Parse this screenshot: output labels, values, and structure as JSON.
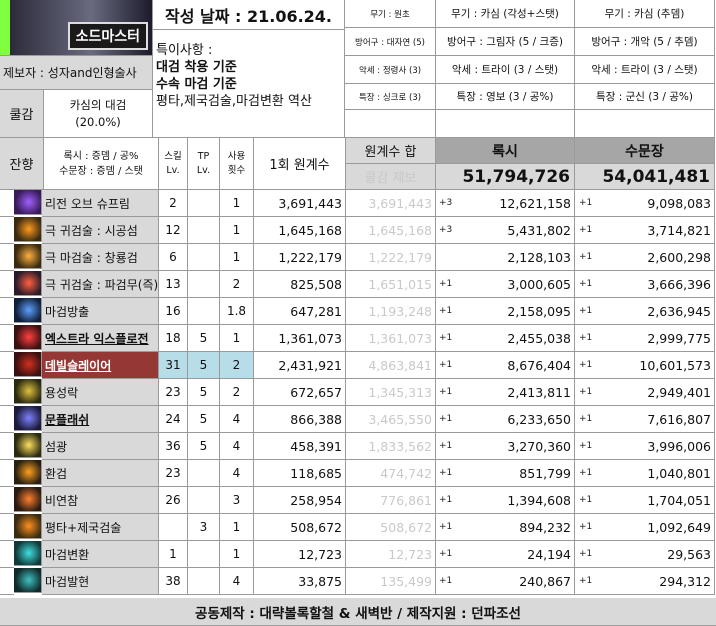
{
  "header": {
    "logo_text": "소드마스터",
    "date_label": "작성 날짜 : 21.06.24.",
    "producer": "제보자 : 성자and인형술사",
    "notes_title": "특이사항 :",
    "notes": [
      "대검 착용 기준",
      "수속 마검 기준",
      "평타,제국검술,마검변환 역산"
    ],
    "cooldown_label": "쿨감",
    "cooldown_value": "카심의 대검\n(20.0%)",
    "remain_label": "잔향",
    "remain_value": "록시 : 증뎀 / 공%\n수문장 : 증뎀 / 스탯"
  },
  "equip": {
    "col1": [
      "무기 : 원초",
      "방어구 : 대자연 (5)",
      "악세 : 정령사 (3)",
      "특장 : 싱크로 (3)"
    ],
    "col2": [
      "무기 : 카심 (각성+스탯)",
      "방어구 : 그림자 (5 / 크증)",
      "악세 : 트라이 (3 / 스탯)",
      "특장 : 영보 (3 / 공%)"
    ],
    "col3": [
      "무기 : 카심 (추뎀)",
      "방어구 : 개악 (5 / 추뎀)",
      "악세 : 트라이 (3 / 스탯)",
      "특장 : 군신 (3 / 공%)"
    ]
  },
  "columns": {
    "skill_lv": "스킬\nLv.",
    "tp_lv": "TP\nLv.",
    "uses": "사용\n횟수",
    "base": "1회 원계수",
    "sum": "원계수 합",
    "sum_sub": "쿨감 제보",
    "roxy": "록시",
    "roxy_total": "51,794,726",
    "gate": "수문장",
    "gate_total": "54,041,481"
  },
  "rows": [
    {
      "name": "리전 오브 슈프림",
      "lv": "2",
      "tp": "",
      "uses": "1",
      "base": "3,691,443",
      "sum": "3,691,443",
      "rplus": "+3",
      "roxy": "12,621,158",
      "gplus": "+1",
      "gate": "9,098,083",
      "icon": "legion-supreme-icon",
      "hl": false,
      "ul": false
    },
    {
      "name": "극 귀검술 : 시공섬",
      "lv": "12",
      "tp": "",
      "uses": "1",
      "base": "1,645,168",
      "sum": "1,645,168",
      "rplus": "+3",
      "roxy": "5,431,802",
      "gplus": "+1",
      "gate": "3,714,821",
      "icon": "spacetime-slash-icon",
      "hl": false,
      "ul": false
    },
    {
      "name": "극 마검술 : 창룡검",
      "lv": "6",
      "tp": "",
      "uses": "1",
      "base": "1,222,179",
      "sum": "1,222,179",
      "rplus": "",
      "roxy": "2,128,103",
      "gplus": "+1",
      "gate": "2,600,298",
      "icon": "dragon-sword-icon",
      "hl": false,
      "ul": false
    },
    {
      "name": "극 귀검술 : 파검무(즉)",
      "lv": "13",
      "tp": "",
      "uses": "2",
      "base": "825,508",
      "sum": "1,651,015",
      "rplus": "+1",
      "roxy": "3,000,605",
      "gplus": "+1",
      "gate": "3,666,396",
      "icon": "sword-dance-icon",
      "hl": false,
      "ul": false
    },
    {
      "name": "마검방출",
      "lv": "16",
      "tp": "",
      "uses": "1.8",
      "base": "647,281",
      "sum": "1,193,248",
      "rplus": "+1",
      "roxy": "2,158,095",
      "gplus": "+1",
      "gate": "2,636,945",
      "icon": "sword-release-icon",
      "hl": false,
      "ul": false
    },
    {
      "name": "엑스트라 익스플로전",
      "lv": "18",
      "tp": "5",
      "uses": "1",
      "base": "1,361,073",
      "sum": "1,361,073",
      "rplus": "+1",
      "roxy": "2,455,038",
      "gplus": "+1",
      "gate": "2,999,775",
      "icon": "extra-explosion-icon",
      "hl": false,
      "ul": true
    },
    {
      "name": "데빌슬레이어",
      "lv": "31",
      "tp": "5",
      "uses": "2",
      "base": "2,431,921",
      "sum": "4,863,841",
      "rplus": "+1",
      "roxy": "8,676,404",
      "gplus": "+1",
      "gate": "10,601,573",
      "icon": "devil-slayer-icon",
      "hl": true,
      "ul": true
    },
    {
      "name": "용성락",
      "lv": "23",
      "tp": "5",
      "uses": "2",
      "base": "672,657",
      "sum": "1,345,313",
      "rplus": "+1",
      "roxy": "2,413,811",
      "gplus": "+1",
      "gate": "2,949,401",
      "icon": "dragon-fall-icon",
      "hl": false,
      "ul": false
    },
    {
      "name": "문플래쉬",
      "lv": "24",
      "tp": "5",
      "uses": "4",
      "base": "866,388",
      "sum": "3,465,550",
      "rplus": "+1",
      "roxy": "6,233,650",
      "gplus": "+1",
      "gate": "7,616,807",
      "icon": "moon-flash-icon",
      "hl": false,
      "ul": true
    },
    {
      "name": "섬광",
      "lv": "36",
      "tp": "5",
      "uses": "4",
      "base": "458,391",
      "sum": "1,833,562",
      "rplus": "+1",
      "roxy": "3,270,360",
      "gplus": "+1",
      "gate": "3,996,006",
      "icon": "flash-icon",
      "hl": false,
      "ul": false
    },
    {
      "name": "환검",
      "lv": "23",
      "tp": "",
      "uses": "4",
      "base": "118,685",
      "sum": "474,742",
      "rplus": "+1",
      "roxy": "851,799",
      "gplus": "+1",
      "gate": "1,040,801",
      "icon": "phantom-sword-icon",
      "hl": false,
      "ul": false
    },
    {
      "name": "비연참",
      "lv": "26",
      "tp": "",
      "uses": "3",
      "base": "258,954",
      "sum": "776,861",
      "rplus": "+1",
      "roxy": "1,394,608",
      "gplus": "+1",
      "gate": "1,704,051",
      "icon": "swallow-slash-icon",
      "hl": false,
      "ul": false
    },
    {
      "name": "평타+제국검술",
      "lv": "",
      "tp": "3",
      "uses": "1",
      "base": "508,672",
      "sum": "508,672",
      "rplus": "+1",
      "roxy": "894,232",
      "gplus": "+1",
      "gate": "1,092,649",
      "icon": "basic-attack-icon",
      "hl": false,
      "ul": false
    },
    {
      "name": "마검변환",
      "lv": "1",
      "tp": "",
      "uses": "1",
      "base": "12,723",
      "sum": "12,723",
      "rplus": "+1",
      "roxy": "24,194",
      "gplus": "+1",
      "gate": "29,563",
      "icon": "sword-convert-icon",
      "hl": false,
      "ul": false
    },
    {
      "name": "마검발현",
      "lv": "38",
      "tp": "",
      "uses": "4",
      "base": "33,875",
      "sum": "135,499",
      "rplus": "+1",
      "roxy": "240,867",
      "gplus": "+1",
      "gate": "294,312",
      "icon": "sword-manifest-icon",
      "hl": false,
      "ul": false
    }
  ],
  "footer": "공동제작 : 대략볼록할철 & 새벽반 / 제작지원 : 던파조선",
  "colors": {
    "highlight_row": "#953734",
    "highlight_cell": "#b7dde8",
    "logo_green": "#00ff00"
  }
}
